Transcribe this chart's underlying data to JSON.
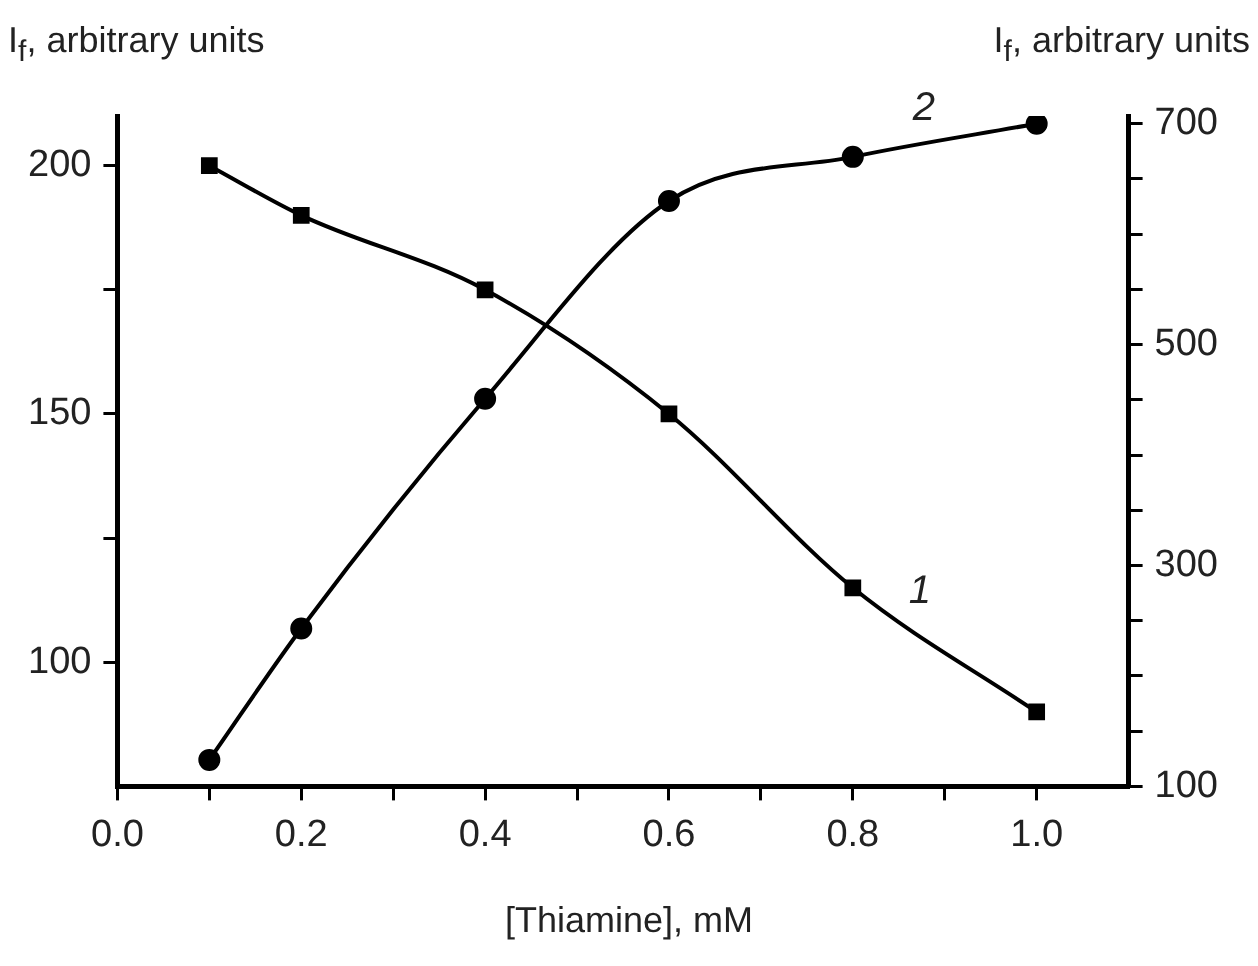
{
  "chart_data": {
    "type": "line",
    "ylabel": "I$_{f}$, arbitrary units",
    "y2label": "I$_{f}$, arbitrary units",
    "xlabel": "[Thiamine], mM",
    "x": [
      0.1,
      0.2,
      0.4,
      0.6,
      0.8,
      1.0
    ],
    "series": [
      {
        "name": "1",
        "color": "#000000",
        "marker": "square",
        "values": [
          200,
          190,
          175,
          150,
          115,
          90
        ]
      },
      {
        "name": "2",
        "color": "#000000",
        "marker": "circle",
        "axis": "y2",
        "values": [
          124,
          243,
          451,
          630,
          670,
          700
        ]
      }
    ],
    "xlim": [
      0,
      1.1
    ],
    "xticks": [
      {
        "value": 0,
        "label": "0.0"
      },
      {
        "value": 0.1,
        "label": null
      },
      0.2,
      {
        "value": 0.3,
        "label": null
      },
      0.4,
      {
        "value": 0.5,
        "label": null
      },
      0.6,
      {
        "value": 0.7,
        "label": null
      },
      0.8,
      {
        "value": 0.9,
        "label": null
      },
      {
        "value": 1.0,
        "label": "1.0"
      }
    ],
    "ylim": [
      75,
      210
    ],
    "yticks": [
      100,
      {
        "value": 125,
        "label": null
      },
      150,
      {
        "value": 175,
        "label": null
      },
      200
    ],
    "y2lim": [
      100,
      707
    ],
    "y2ticks": [
      100,
      {
        "value": 150,
        "label": null
      },
      {
        "value": 200,
        "label": null
      },
      {
        "value": 250,
        "label": null
      },
      300,
      {
        "value": 350,
        "label": null
      },
      {
        "value": 400,
        "label": null
      },
      {
        "value": 450,
        "label": null
      },
      500,
      {
        "value": 550,
        "label": null
      },
      {
        "value": 600,
        "label": null
      },
      {
        "value": 650,
        "label": null
      },
      700
    ],
    "grid": false,
    "legend": false,
    "line_style": "solid"
  }
}
